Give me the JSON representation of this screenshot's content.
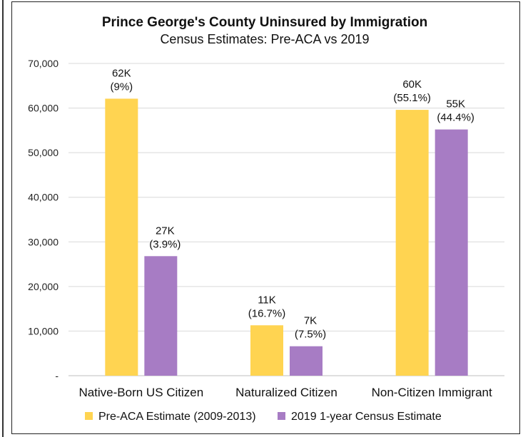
{
  "chart_data": {
    "type": "bar",
    "title": "Prince George's County Uninsured by Immigration",
    "subtitle": "Census Estimates: Pre-ACA vs 2019",
    "categories": [
      "Native-Born US Citizen",
      "Naturalized Citizen",
      "Non-Citizen Immigrant"
    ],
    "series": [
      {
        "name": "Pre-ACA Estimate (2009-2013)",
        "color": "#FFD451",
        "values": [
          62100,
          11300,
          59600
        ],
        "labels": [
          [
            "62K",
            "(9%)"
          ],
          [
            "11K",
            "(16.7%)"
          ],
          [
            "60K",
            "(55.1%)"
          ]
        ]
      },
      {
        "name": "2019 1-year Census Estimate",
        "color": "#A77CC4",
        "values": [
          26800,
          6600,
          55200
        ],
        "labels": [
          [
            "27K",
            "(3.9%)"
          ],
          [
            "7K",
            "(7.5%)"
          ],
          [
            "55K",
            "(44.4%)"
          ]
        ]
      }
    ],
    "ylim": [
      0,
      70000
    ],
    "yticks": [
      0,
      10000,
      20000,
      30000,
      40000,
      50000,
      60000,
      70000
    ],
    "ytick_labels": [
      "-",
      "10,000",
      "20,000",
      "30,000",
      "40,000",
      "50,000",
      "60,000",
      "70,000"
    ],
    "grid": true,
    "legend_position": "bottom"
  }
}
